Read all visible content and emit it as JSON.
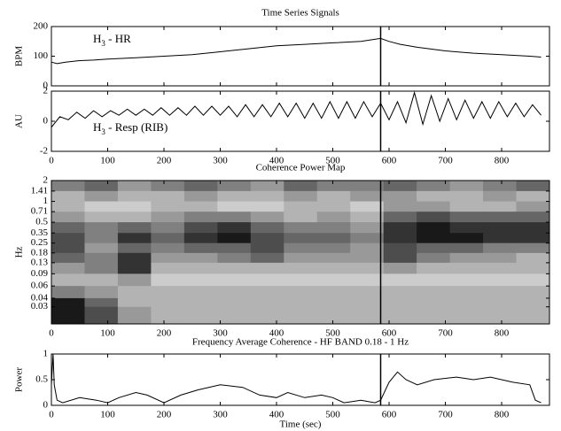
{
  "chart_data": [
    {
      "type": "line",
      "title": "Time Series Signals",
      "ylabel": "BPM",
      "annotation": [
        "H",
        "3",
        " - HR"
      ],
      "x": [
        0,
        10,
        25,
        50,
        75,
        100,
        150,
        200,
        250,
        300,
        350,
        400,
        450,
        500,
        550,
        585,
        600,
        620,
        650,
        700,
        750,
        800,
        850,
        870
      ],
      "values": [
        80,
        75,
        80,
        85,
        87,
        90,
        95,
        100,
        105,
        115,
        125,
        135,
        140,
        145,
        150,
        160,
        150,
        140,
        130,
        118,
        110,
        105,
        100,
        97
      ],
      "color": "#000000",
      "xlim": [
        0,
        885
      ],
      "xticks": [
        0,
        100,
        200,
        300,
        400,
        500,
        600,
        700,
        800
      ],
      "show_xtick_labels": false,
      "ylim": [
        0,
        200
      ],
      "yticks": [
        0,
        100,
        200
      ],
      "cursor_x": 585
    },
    {
      "type": "line",
      "ylabel": "AU",
      "annotation": [
        "H",
        "3",
        " - Resp (RIB)"
      ],
      "x": [
        0,
        15,
        30,
        45,
        60,
        75,
        90,
        105,
        120,
        135,
        150,
        165,
        180,
        195,
        210,
        225,
        240,
        255,
        270,
        285,
        300,
        315,
        330,
        345,
        360,
        375,
        390,
        405,
        420,
        435,
        450,
        465,
        480,
        495,
        510,
        525,
        540,
        555,
        570,
        585,
        600,
        615,
        630,
        645,
        660,
        675,
        690,
        705,
        720,
        735,
        750,
        765,
        780,
        795,
        810,
        825,
        840,
        855,
        870
      ],
      "values": [
        -0.4,
        0.3,
        0.1,
        0.6,
        0.2,
        0.7,
        0.3,
        0.7,
        0.4,
        0.8,
        0.4,
        0.8,
        0.4,
        0.9,
        0.4,
        0.9,
        0.4,
        1.0,
        0.4,
        1.0,
        0.4,
        1.0,
        0.3,
        1.1,
        0.3,
        1.1,
        0.3,
        1.2,
        0.3,
        1.2,
        0.2,
        1.2,
        0.2,
        1.3,
        0.2,
        1.3,
        0.2,
        1.3,
        0.3,
        1.2,
        0.1,
        1.3,
        -0.1,
        1.9,
        -0.2,
        1.7,
        0.0,
        1.5,
        0.1,
        1.4,
        0.2,
        1.3,
        0.2,
        1.3,
        0.3,
        1.2,
        0.3,
        1.1,
        0.4
      ],
      "color": "#000000",
      "xlim": [
        0,
        885
      ],
      "xticks": [
        0,
        100,
        200,
        300,
        400,
        500,
        600,
        700,
        800
      ],
      "show_xtick_labels": true,
      "ylim": [
        -2,
        2
      ],
      "yticks": [
        -2,
        0,
        2
      ],
      "cursor_x": 585
    },
    {
      "type": "heatmap",
      "title": "Coherence Power Map",
      "ylabel": "Hz",
      "yscale": "log",
      "xbins": [
        0,
        59,
        118,
        177,
        236,
        295,
        354,
        413,
        472,
        531,
        590,
        649,
        708,
        767,
        826,
        885
      ],
      "ybins": [
        2,
        1.41,
        1,
        0.71,
        0.5,
        0.35,
        0.25,
        0.18,
        0.13,
        0.09,
        0.06,
        0.04,
        0.03,
        0.017
      ],
      "z": [
        [
          0.5,
          0.6,
          0.4,
          0.5,
          0.6,
          0.5,
          0.4,
          0.6,
          0.5,
          0.5,
          0.6,
          0.5,
          0.4,
          0.5,
          0.6
        ],
        [
          0.3,
          0.4,
          0.3,
          0.3,
          0.4,
          0.3,
          0.3,
          0.4,
          0.3,
          0.4,
          0.4,
          0.3,
          0.3,
          0.4,
          0.3
        ],
        [
          0.3,
          0.2,
          0.2,
          0.3,
          0.3,
          0.2,
          0.2,
          0.3,
          0.3,
          0.2,
          0.4,
          0.4,
          0.3,
          0.3,
          0.4
        ],
        [
          0.4,
          0.3,
          0.3,
          0.4,
          0.5,
          0.5,
          0.4,
          0.3,
          0.4,
          0.3,
          0.6,
          0.7,
          0.6,
          0.6,
          0.6
        ],
        [
          0.6,
          0.5,
          0.6,
          0.5,
          0.7,
          0.8,
          0.6,
          0.5,
          0.5,
          0.4,
          0.8,
          0.9,
          0.8,
          0.8,
          0.8
        ],
        [
          0.7,
          0.5,
          0.8,
          0.6,
          0.8,
          0.9,
          0.7,
          0.6,
          0.6,
          0.5,
          0.8,
          0.9,
          0.9,
          0.8,
          0.8
        ],
        [
          0.7,
          0.4,
          0.6,
          0.5,
          0.6,
          0.6,
          0.7,
          0.5,
          0.5,
          0.4,
          0.7,
          0.6,
          0.6,
          0.5,
          0.5
        ],
        [
          0.6,
          0.5,
          0.8,
          0.4,
          0.4,
          0.5,
          0.6,
          0.4,
          0.4,
          0.4,
          0.7,
          0.5,
          0.4,
          0.4,
          0.3
        ],
        [
          0.4,
          0.5,
          0.8,
          0.3,
          0.3,
          0.3,
          0.3,
          0.3,
          0.3,
          0.3,
          0.4,
          0.3,
          0.3,
          0.3,
          0.3
        ],
        [
          0.3,
          0.3,
          0.4,
          0.2,
          0.2,
          0.2,
          0.2,
          0.2,
          0.2,
          0.2,
          0.2,
          0.2,
          0.2,
          0.2,
          0.2
        ],
        [
          0.5,
          0.4,
          0.3,
          0.3,
          0.3,
          0.3,
          0.3,
          0.3,
          0.3,
          0.3,
          0.3,
          0.3,
          0.3,
          0.3,
          0.3
        ],
        [
          0.9,
          0.6,
          0.3,
          0.3,
          0.3,
          0.3,
          0.3,
          0.3,
          0.3,
          0.3,
          0.3,
          0.3,
          0.3,
          0.3,
          0.3
        ],
        [
          0.9,
          0.7,
          0.4,
          0.3,
          0.3,
          0.3,
          0.3,
          0.3,
          0.3,
          0.3,
          0.3,
          0.3,
          0.3,
          0.3,
          0.3
        ]
      ],
      "zlim": [
        0,
        1
      ],
      "colormap": "gray_r",
      "xlim": [
        0,
        885
      ],
      "xticks": [
        0,
        100,
        200,
        300,
        400,
        500,
        600,
        700,
        800
      ],
      "show_xtick_labels": true,
      "ylim": [
        0.017,
        2
      ],
      "yticks": [
        2,
        1.41,
        1,
        0.71,
        0.5,
        0.35,
        0.25,
        0.18,
        0.13,
        0.09,
        0.06,
        0.04,
        0.03
      ],
      "cursor_x": 585
    },
    {
      "type": "line",
      "title": "Frequency Average Coherence - HF BAND 0.18 - 1 Hz",
      "ylabel": "Power",
      "xlabel": "Time (sec)",
      "x": [
        0,
        3,
        5,
        10,
        20,
        50,
        80,
        100,
        120,
        150,
        170,
        200,
        230,
        260,
        300,
        340,
        370,
        400,
        420,
        450,
        480,
        500,
        520,
        550,
        575,
        585,
        600,
        615,
        630,
        650,
        680,
        720,
        750,
        780,
        820,
        850,
        860,
        870
      ],
      "values": [
        0.4,
        1,
        0.4,
        0.1,
        0.05,
        0.15,
        0.1,
        0.05,
        0.15,
        0.25,
        0.2,
        0.05,
        0.2,
        0.3,
        0.4,
        0.35,
        0.2,
        0.15,
        0.25,
        0.15,
        0.2,
        0.15,
        0.05,
        0.1,
        0.05,
        0.1,
        0.45,
        0.65,
        0.5,
        0.4,
        0.5,
        0.55,
        0.5,
        0.55,
        0.45,
        0.4,
        0.1,
        0.05
      ],
      "color": "#000000",
      "xlim": [
        0,
        885
      ],
      "xticks": [
        0,
        100,
        200,
        300,
        400,
        500,
        600,
        700,
        800
      ],
      "show_xtick_labels": true,
      "ylim": [
        0,
        1
      ],
      "yticks": [
        0,
        0.5,
        1
      ],
      "cursor_x": 585
    }
  ]
}
